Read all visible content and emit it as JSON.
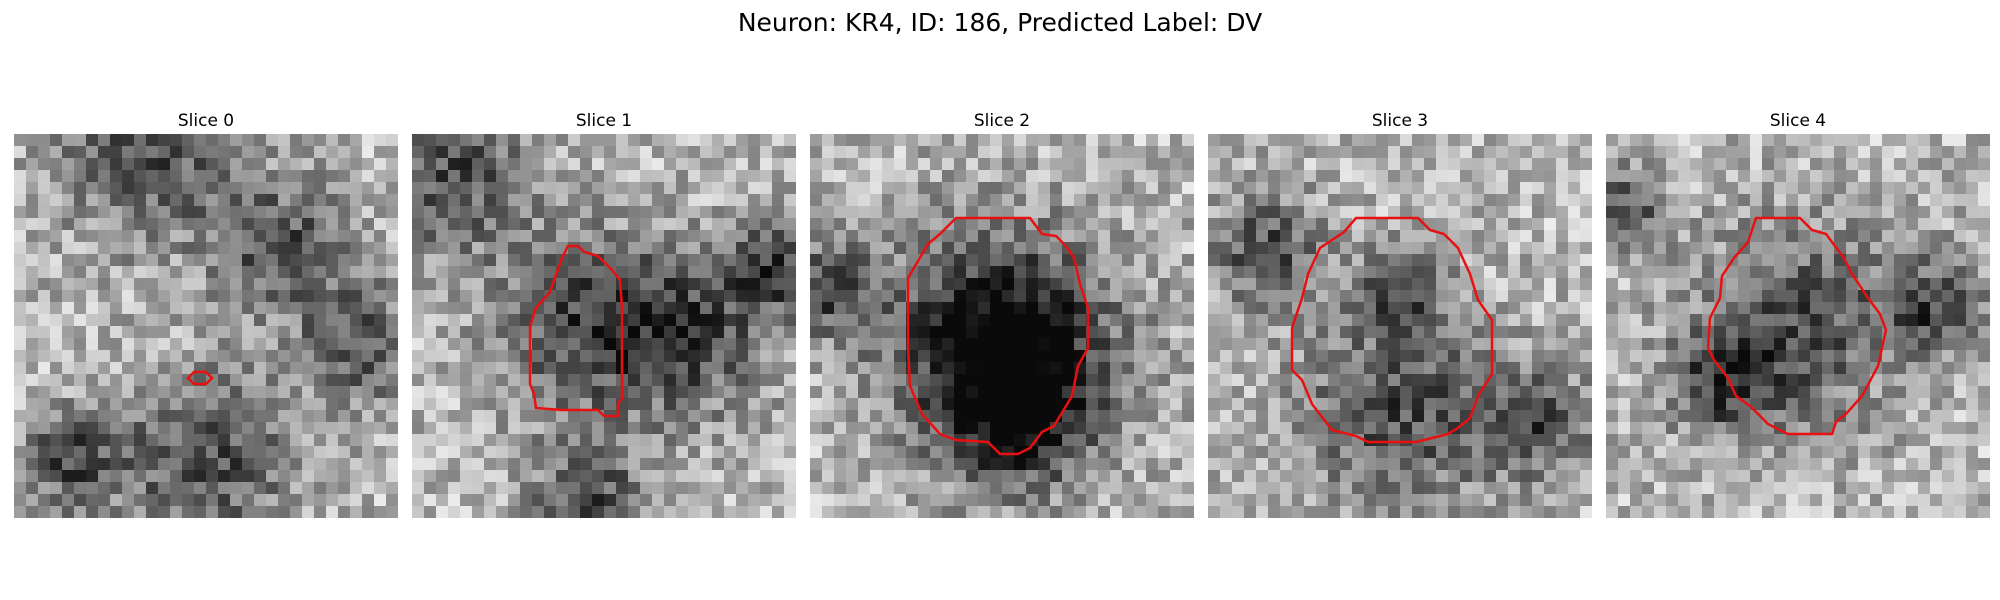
{
  "figure": {
    "title": "Neuron: KR4, ID: 186, Predicted Label: DV"
  },
  "panels": [
    {
      "title": "Slice 0",
      "image": "grayscale-noise-slice-0",
      "contour": "small"
    },
    {
      "title": "Slice 1",
      "image": "grayscale-noise-slice-1",
      "contour": "roi"
    },
    {
      "title": "Slice 2",
      "image": "grayscale-noise-slice-2",
      "contour": "roi"
    },
    {
      "title": "Slice 3",
      "image": "grayscale-noise-slice-3",
      "contour": "roi"
    },
    {
      "title": "Slice 4",
      "image": "grayscale-noise-slice-4",
      "contour": "roi"
    }
  ],
  "colors": {
    "contour": "#e81010",
    "background": "#ffffff"
  }
}
